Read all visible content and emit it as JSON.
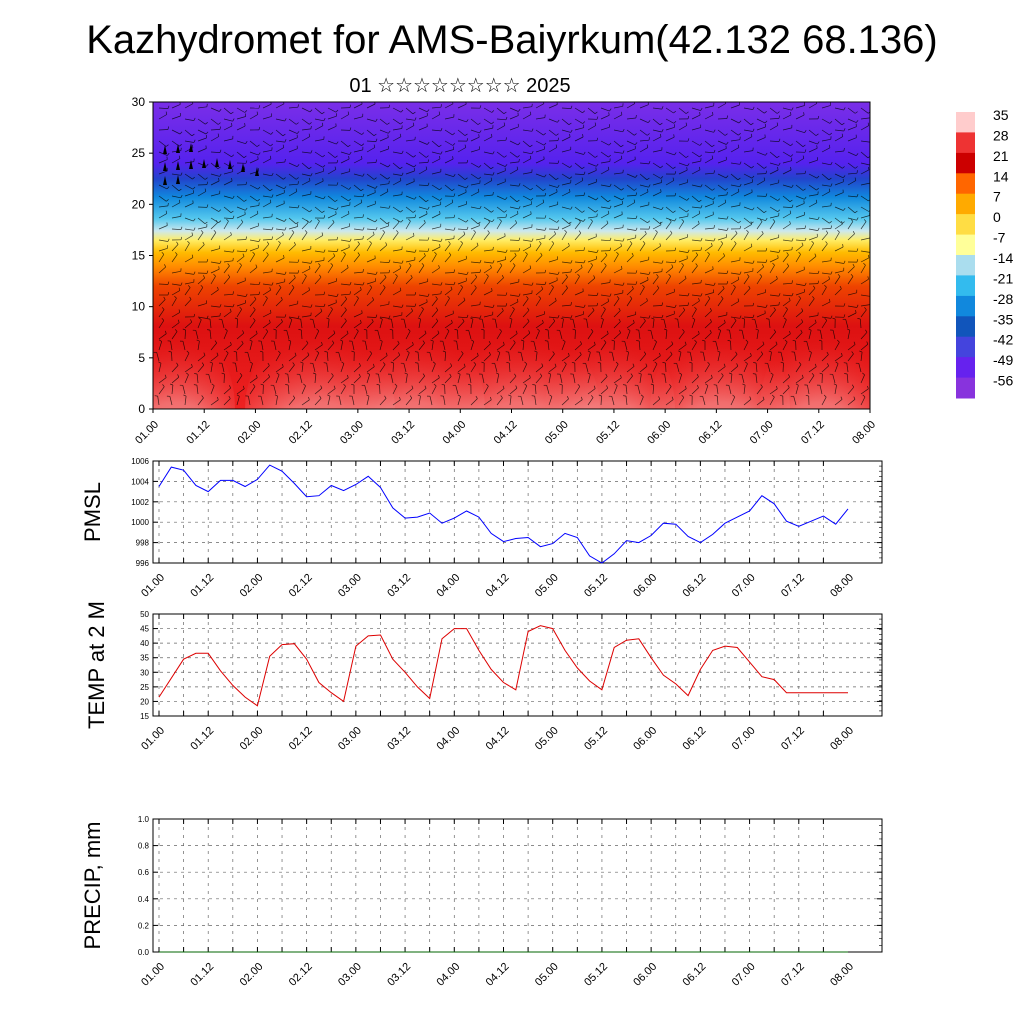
{
  "header": {
    "title": "Kazhydromet for AMS-Baiyrkum(42.132 68.136)",
    "subtitle": "01 ☆☆☆☆☆☆☆☆ 2025"
  },
  "chart_data": [
    {
      "type": "heatmap",
      "title": "",
      "y_ticks": [
        "0",
        "5",
        "10",
        "15",
        "20",
        "25",
        "30"
      ],
      "ylim": [
        0,
        30
      ],
      "x_ticks": [
        "01.00",
        "01.12",
        "02.00",
        "02.12",
        "03.00",
        "03.12",
        "04.00",
        "04.12",
        "05.00",
        "05.12",
        "06.00",
        "06.12",
        "07.00",
        "07.12",
        "08.00"
      ],
      "colorbar": {
        "labels": [
          "35",
          "28",
          "21",
          "14",
          "7",
          "0",
          "-7",
          "-14",
          "-21",
          "-28",
          "-35",
          "-42",
          "-49",
          "-56"
        ],
        "colors": [
          "#ffcccc",
          "#ee3333",
          "#cc0000",
          "#ff6600",
          "#ffaa00",
          "#ffdd44",
          "#ffff99",
          "#aaddee",
          "#33bbee",
          "#1188dd",
          "#1155bb",
          "#4444dd",
          "#6622ee",
          "#8833dd"
        ]
      },
      "overlay": "wind barbs"
    },
    {
      "type": "line",
      "ylabel": "PMSL",
      "y_ticks": [
        "996",
        "998",
        "1000",
        "1002",
        "1004",
        "1006"
      ],
      "ylim": [
        996,
        1006
      ],
      "x_ticks": [
        "01.00",
        "01.12",
        "02.00",
        "02.12",
        "03.00",
        "03.12",
        "04.00",
        "04.12",
        "05.00",
        "05.12",
        "06.00",
        "06.12",
        "07.00",
        "07.12",
        "08.00"
      ],
      "x_hours": [
        0,
        3,
        6,
        9,
        12,
        15,
        18,
        21,
        24,
        27,
        30,
        33,
        36,
        39,
        42,
        45,
        48,
        51,
        54,
        57,
        60,
        63,
        66,
        69,
        72,
        75,
        78,
        81,
        84,
        87,
        90,
        93,
        96,
        99,
        102,
        105,
        108,
        111,
        114,
        117,
        120,
        123,
        126,
        129,
        132,
        135,
        138,
        141,
        144,
        147,
        150,
        153,
        156,
        159,
        162,
        165,
        168
      ],
      "series": [
        {
          "color": "#0000ff",
          "values": [
            1003.5,
            1005.4,
            1005.1,
            1003.6,
            1003.0,
            1004.1,
            1004.1,
            1003.5,
            1004.2,
            1005.6,
            1005.0,
            1003.8,
            1002.5,
            1002.6,
            1003.6,
            1003.1,
            1003.7,
            1004.5,
            1003.4,
            1001.4,
            1000.4,
            1000.5,
            1000.9,
            999.9,
            1000.4,
            1001.1,
            1000.5,
            998.9,
            998.1,
            998.4,
            998.5,
            997.6,
            997.9,
            998.9,
            998.5,
            996.7,
            996.0,
            996.9,
            998.2,
            998.0,
            998.7,
            999.9,
            999.8,
            998.6,
            998.0,
            998.8,
            999.9,
            1000.5,
            1001.1,
            1002.6,
            1001.8,
            1000.1,
            999.6,
            1000.1,
            1000.6,
            999.8,
            1001.3
          ]
        }
      ]
    },
    {
      "type": "line",
      "ylabel": "TEMP at 2 M",
      "y_ticks": [
        "15",
        "20",
        "25",
        "30",
        "35",
        "40",
        "45",
        "50"
      ],
      "ylim": [
        15,
        50
      ],
      "x_ticks": [
        "01.00",
        "01.12",
        "02.00",
        "02.12",
        "03.00",
        "03.12",
        "04.00",
        "04.12",
        "05.00",
        "05.12",
        "06.00",
        "06.12",
        "07.00",
        "07.12",
        "08.00"
      ],
      "x_hours": [
        0,
        6,
        9,
        12,
        15,
        18,
        21,
        24,
        27,
        30,
        33,
        36,
        39,
        42,
        45,
        48,
        51,
        54,
        57,
        60,
        63,
        66,
        69,
        72,
        75,
        78,
        81,
        84,
        87,
        90,
        93,
        96,
        99,
        102,
        105,
        108,
        111,
        114,
        117,
        120,
        123,
        126,
        129,
        132,
        135,
        138,
        141,
        144,
        147,
        150,
        153,
        156,
        159,
        162,
        165,
        168
      ],
      "series": [
        {
          "color": "#dd0000",
          "values": [
            21.5,
            34.5,
            36.5,
            36.5,
            30.5,
            25.5,
            21.5,
            18.5,
            35.5,
            39.5,
            39.8,
            34.5,
            26.5,
            23.0,
            20.0,
            39.0,
            42.5,
            42.8,
            34.5,
            30.0,
            25.0,
            21.0,
            41.5,
            45.0,
            45.0,
            37.5,
            31.0,
            26.5,
            24.0,
            44.0,
            46.0,
            45.0,
            37.5,
            31.5,
            27.0,
            24.0,
            38.5,
            41.0,
            41.5,
            35.0,
            29.0,
            26.0,
            22.0,
            31.0,
            37.5,
            39.0,
            38.5,
            33.5,
            28.5,
            27.5,
            23.0,
            23.0,
            23.0,
            23.0,
            23.0,
            23.0
          ]
        }
      ]
    },
    {
      "type": "line",
      "ylabel": "PRECIP, mm",
      "y_ticks": [
        "0.0",
        "0.2",
        "0.4",
        "0.6",
        "0.8",
        "1.0"
      ],
      "ylim": [
        0,
        1
      ],
      "x_ticks": [
        "01.00",
        "01.12",
        "02.00",
        "02.12",
        "03.00",
        "03.12",
        "04.00",
        "04.12",
        "05.00",
        "05.12",
        "06.00",
        "06.12",
        "07.00",
        "07.12",
        "08.00"
      ],
      "series": [
        {
          "color": "#006600",
          "values": [
            0,
            0,
            0,
            0,
            0,
            0,
            0,
            0,
            0,
            0,
            0,
            0,
            0,
            0,
            0
          ]
        }
      ]
    }
  ]
}
